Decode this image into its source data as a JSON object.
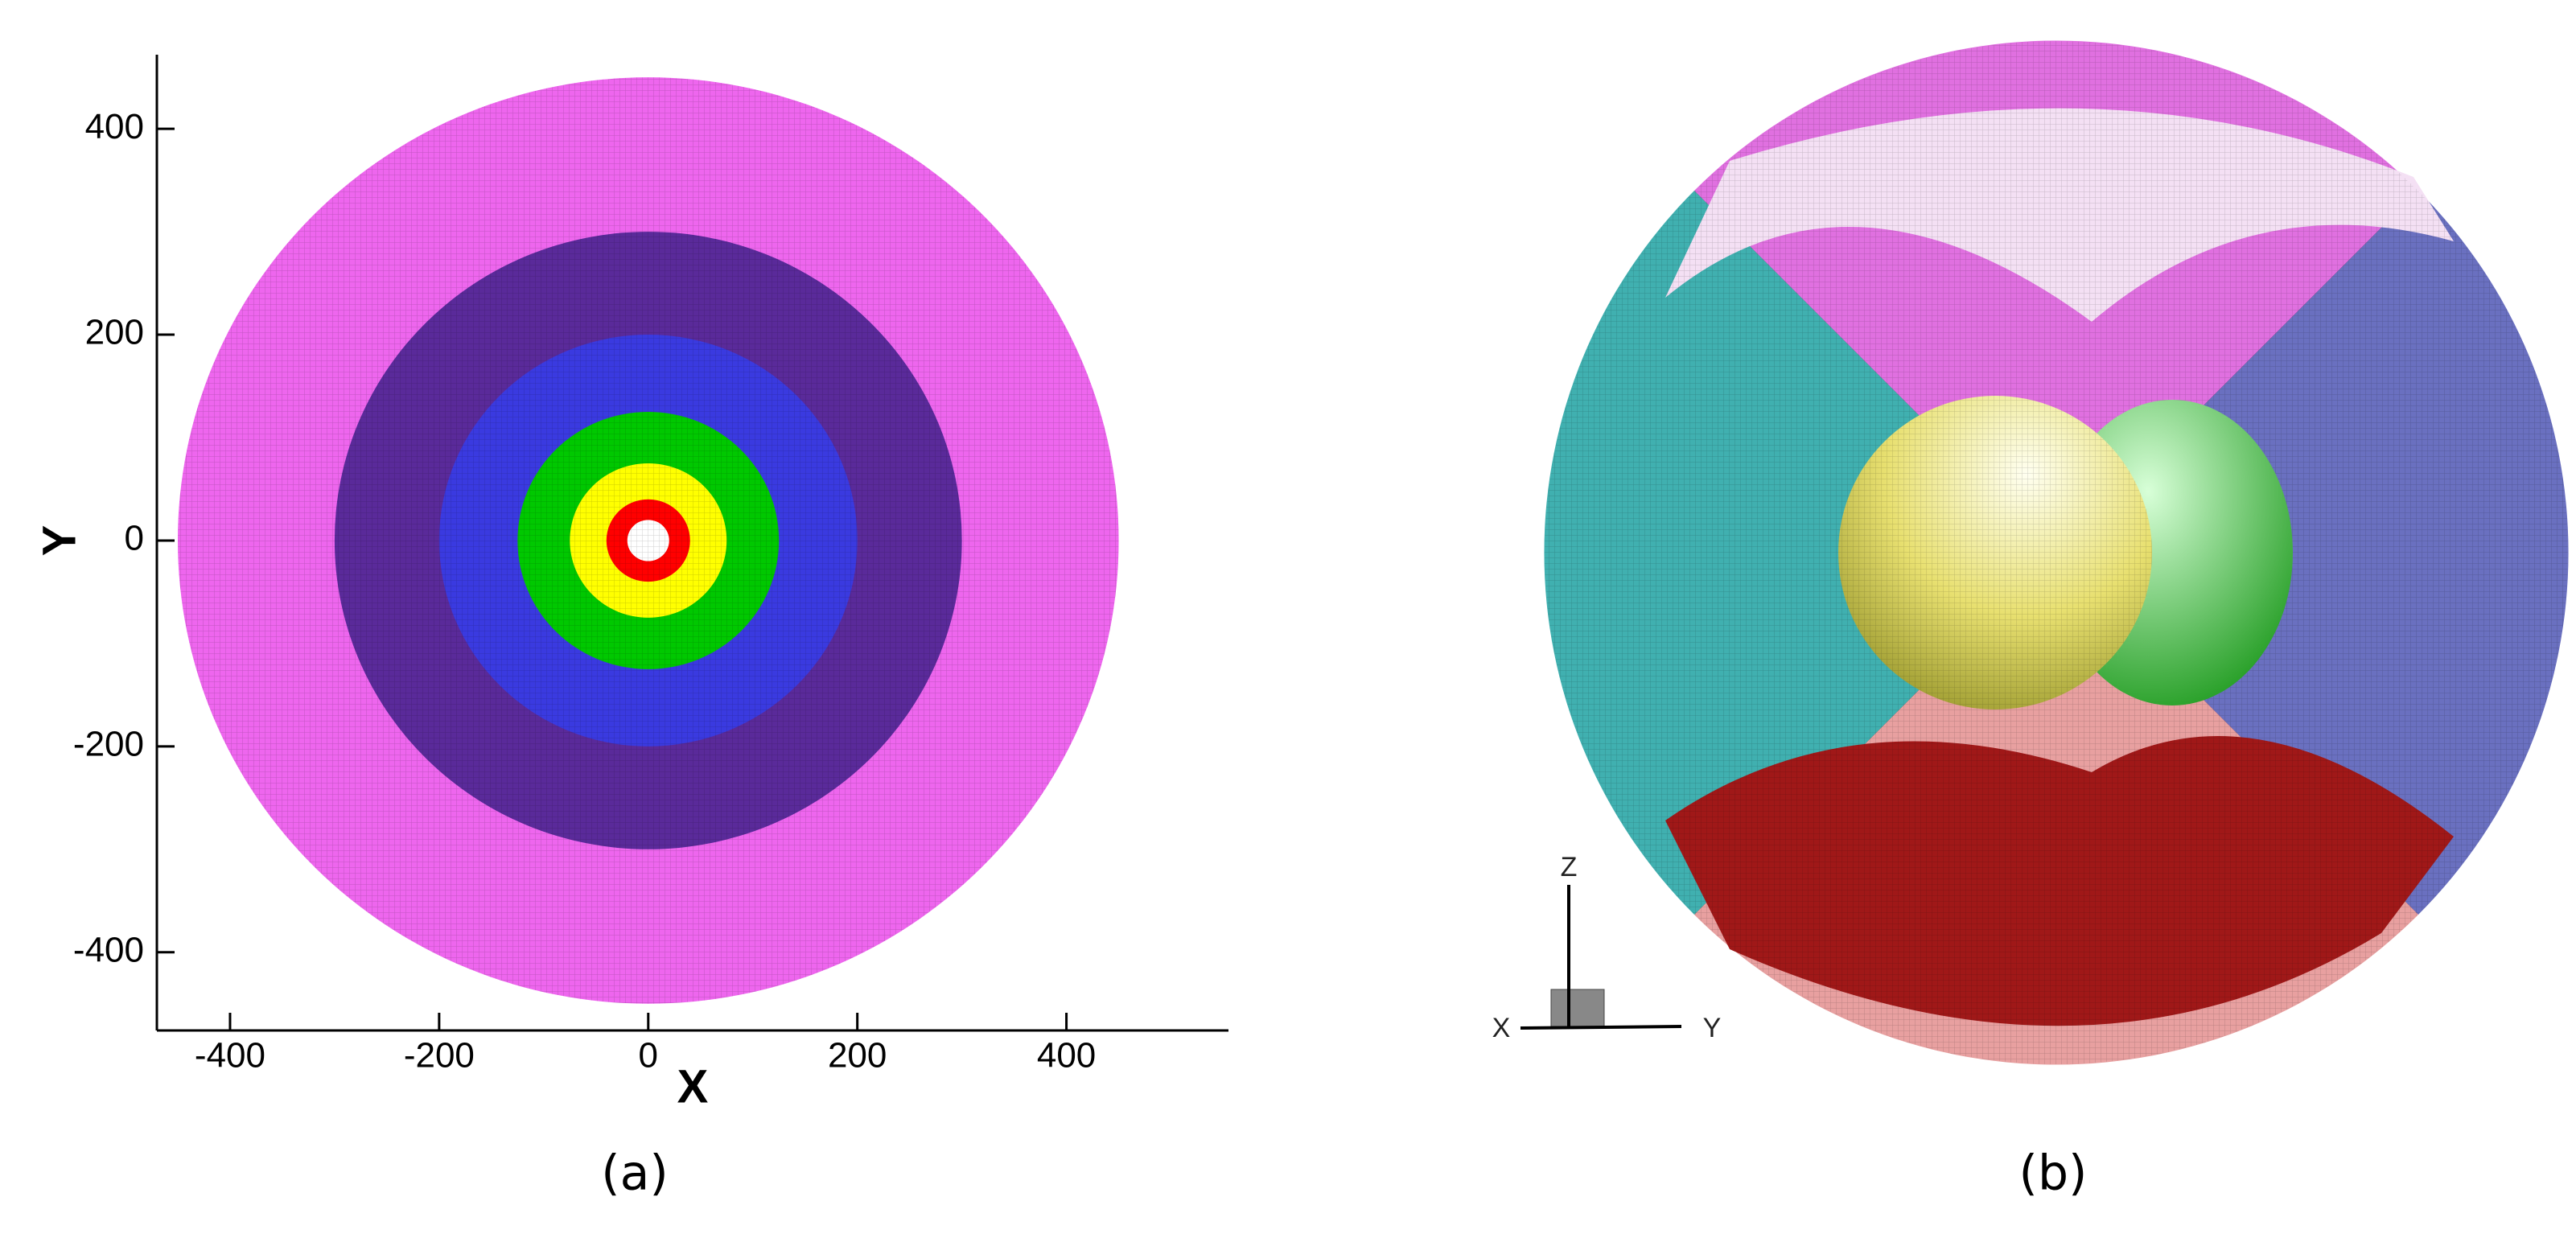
{
  "chart_data": {
    "type": "rings",
    "xlabel": "X",
    "ylabel": "Y",
    "xlim": [
      -470,
      555
    ],
    "ylim": [
      -476,
      472
    ],
    "xticks": [
      -400,
      -200,
      0,
      200,
      400
    ],
    "yticks": [
      -400,
      -200,
      0,
      200,
      400
    ],
    "rings": [
      {
        "radius": 450,
        "color": "#ee66ee"
      },
      {
        "radius": 300,
        "color": "#5a2a9a"
      },
      {
        "radius": 200,
        "color": "#3a3ae0"
      },
      {
        "radius": 125,
        "color": "#00c800"
      },
      {
        "radius": 75,
        "color": "#ffff00"
      },
      {
        "radius": 40,
        "color": "#ff0000"
      },
      {
        "radius": 20,
        "color": "#ffffff"
      }
    ],
    "caption": "(a)"
  },
  "figure_b": {
    "caption": "(b)",
    "triad": {
      "x": "X",
      "y": "Y",
      "z": "Z"
    }
  }
}
